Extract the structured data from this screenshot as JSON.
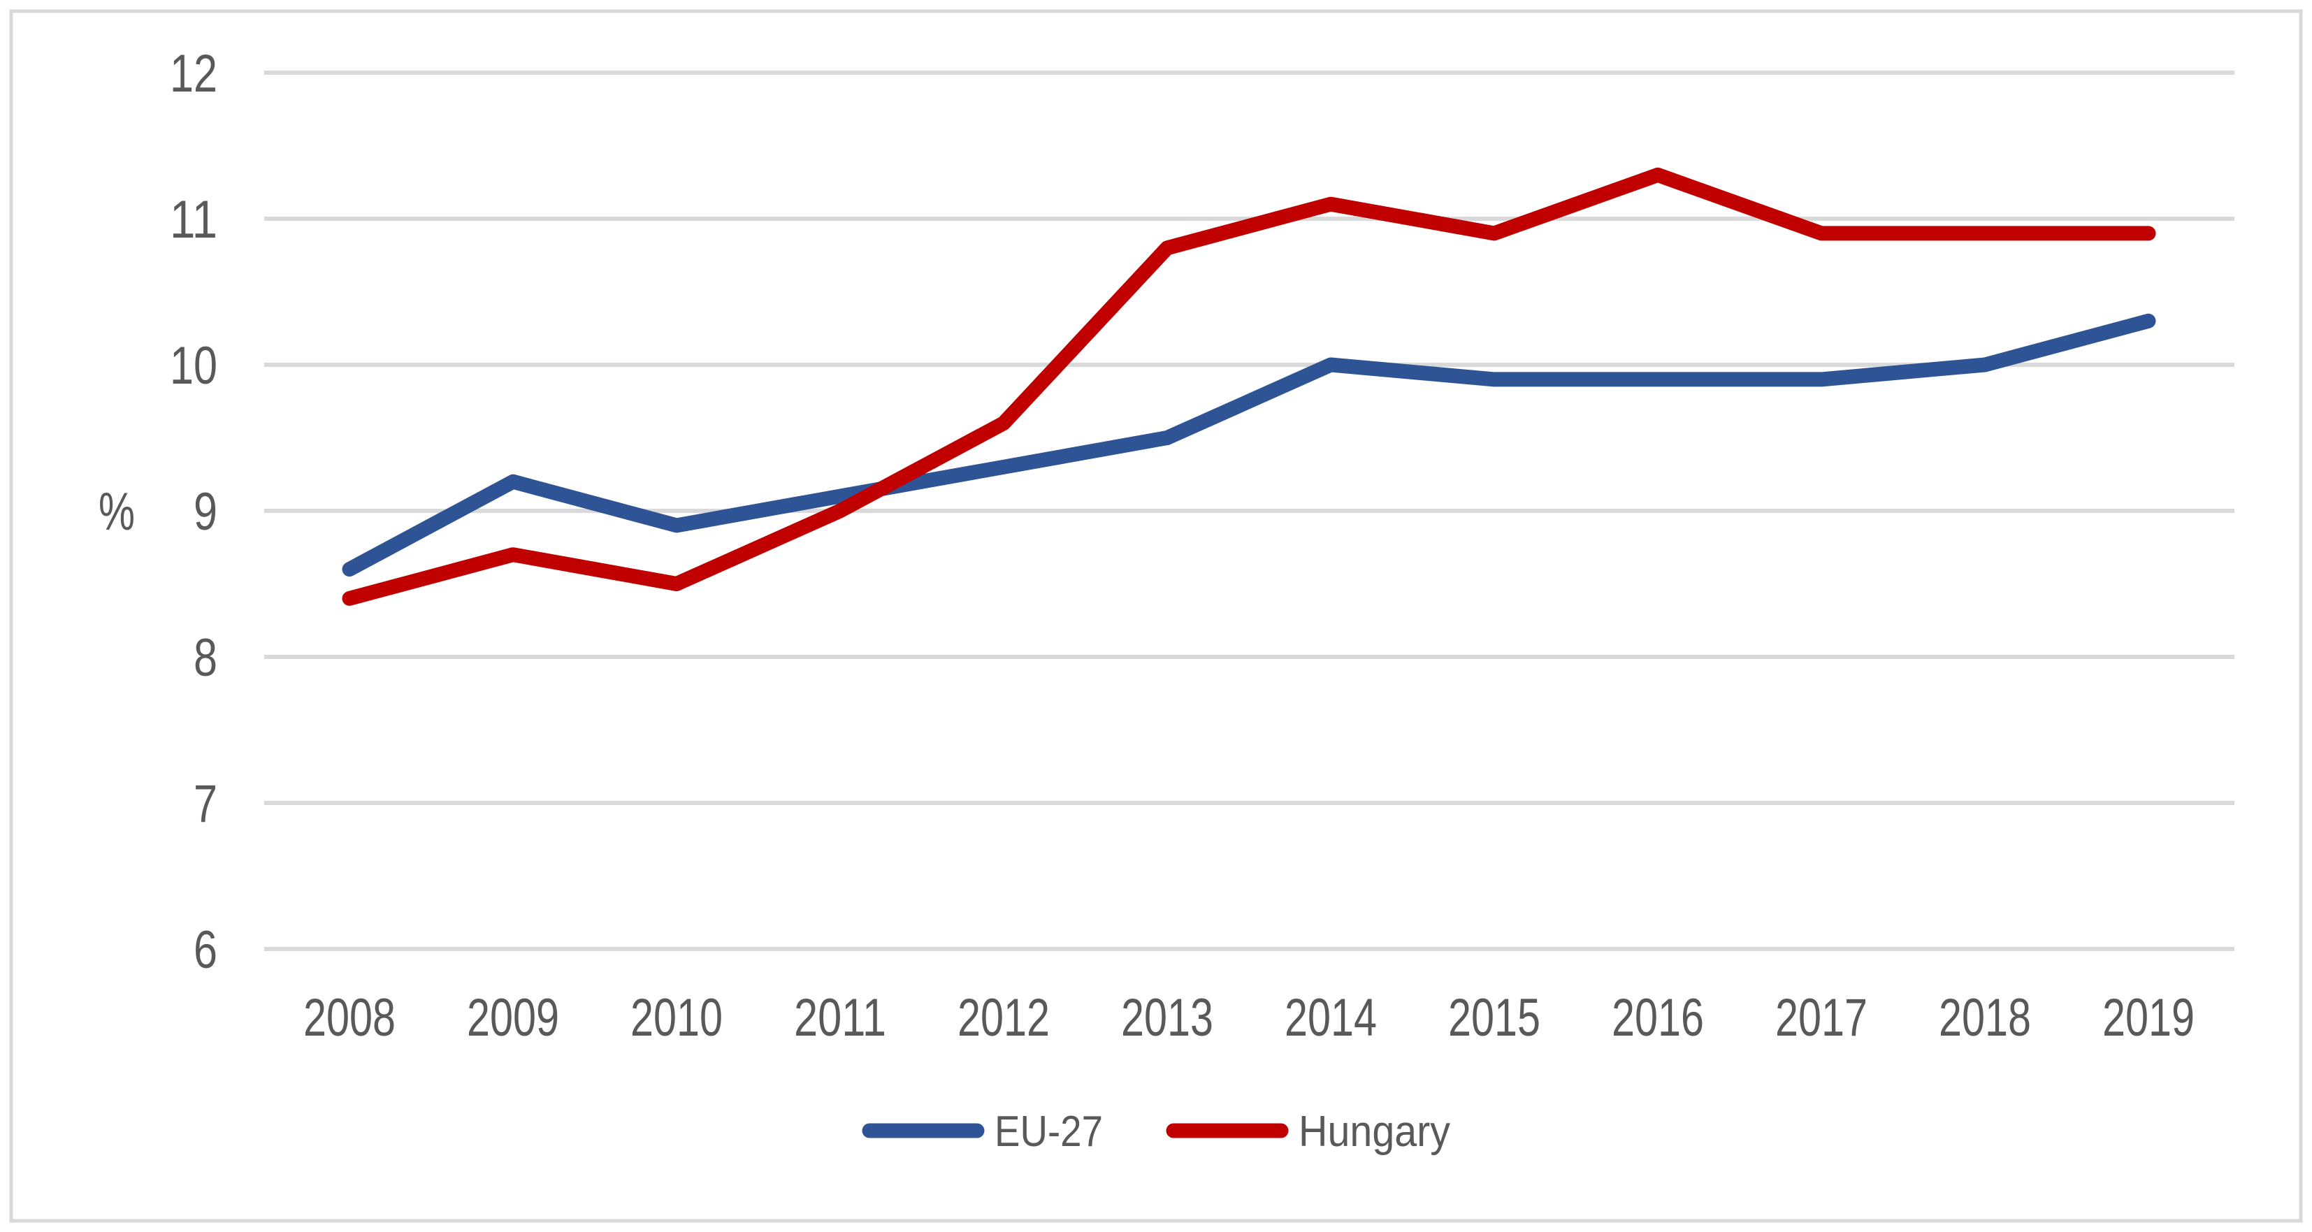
{
  "chart_data": {
    "type": "line",
    "title": "",
    "xlabel": "",
    "ylabel": "%",
    "categories": [
      "2008",
      "2009",
      "2010",
      "2011",
      "2012",
      "2013",
      "2014",
      "2015",
      "2016",
      "2017",
      "2018",
      "2019"
    ],
    "series": [
      {
        "name": "EU-27",
        "color": "#2F5496",
        "values": [
          8.6,
          9.2,
          8.9,
          9.1,
          9.3,
          9.5,
          10.0,
          9.9,
          9.9,
          9.9,
          10.0,
          10.3
        ]
      },
      {
        "name": "Hungary",
        "color": "#C00000",
        "values": [
          8.4,
          8.7,
          8.5,
          9.0,
          9.6,
          10.8,
          11.1,
          10.9,
          11.3,
          10.9,
          10.9,
          10.9
        ]
      }
    ],
    "ylim": [
      6,
      12
    ],
    "yticks": [
      6,
      7,
      8,
      9,
      10,
      11,
      12
    ],
    "grid": "horizontal",
    "legend_position": "bottom-center"
  },
  "style": {
    "grid_color": "#D9D9D9",
    "frame_color": "#D9D9D9",
    "text_color": "#595959",
    "background": "#FFFFFF",
    "line_width": 21
  }
}
